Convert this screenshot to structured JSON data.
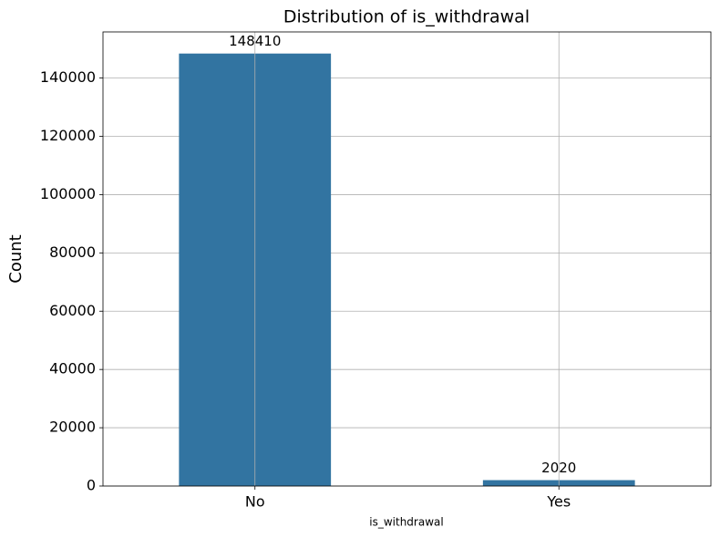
{
  "chart_data": {
    "type": "bar",
    "title": "Distribution of is_withdrawal",
    "x_label": "is_withdrawal",
    "y_label": "Count",
    "categories": [
      "No",
      "Yes"
    ],
    "values": [
      148410,
      2020
    ],
    "color": "#3274a1",
    "ylim": [
      0,
      155831
    ],
    "yticks": [
      0,
      20000,
      40000,
      60000,
      80000,
      100000,
      120000,
      140000
    ],
    "grid": true
  }
}
